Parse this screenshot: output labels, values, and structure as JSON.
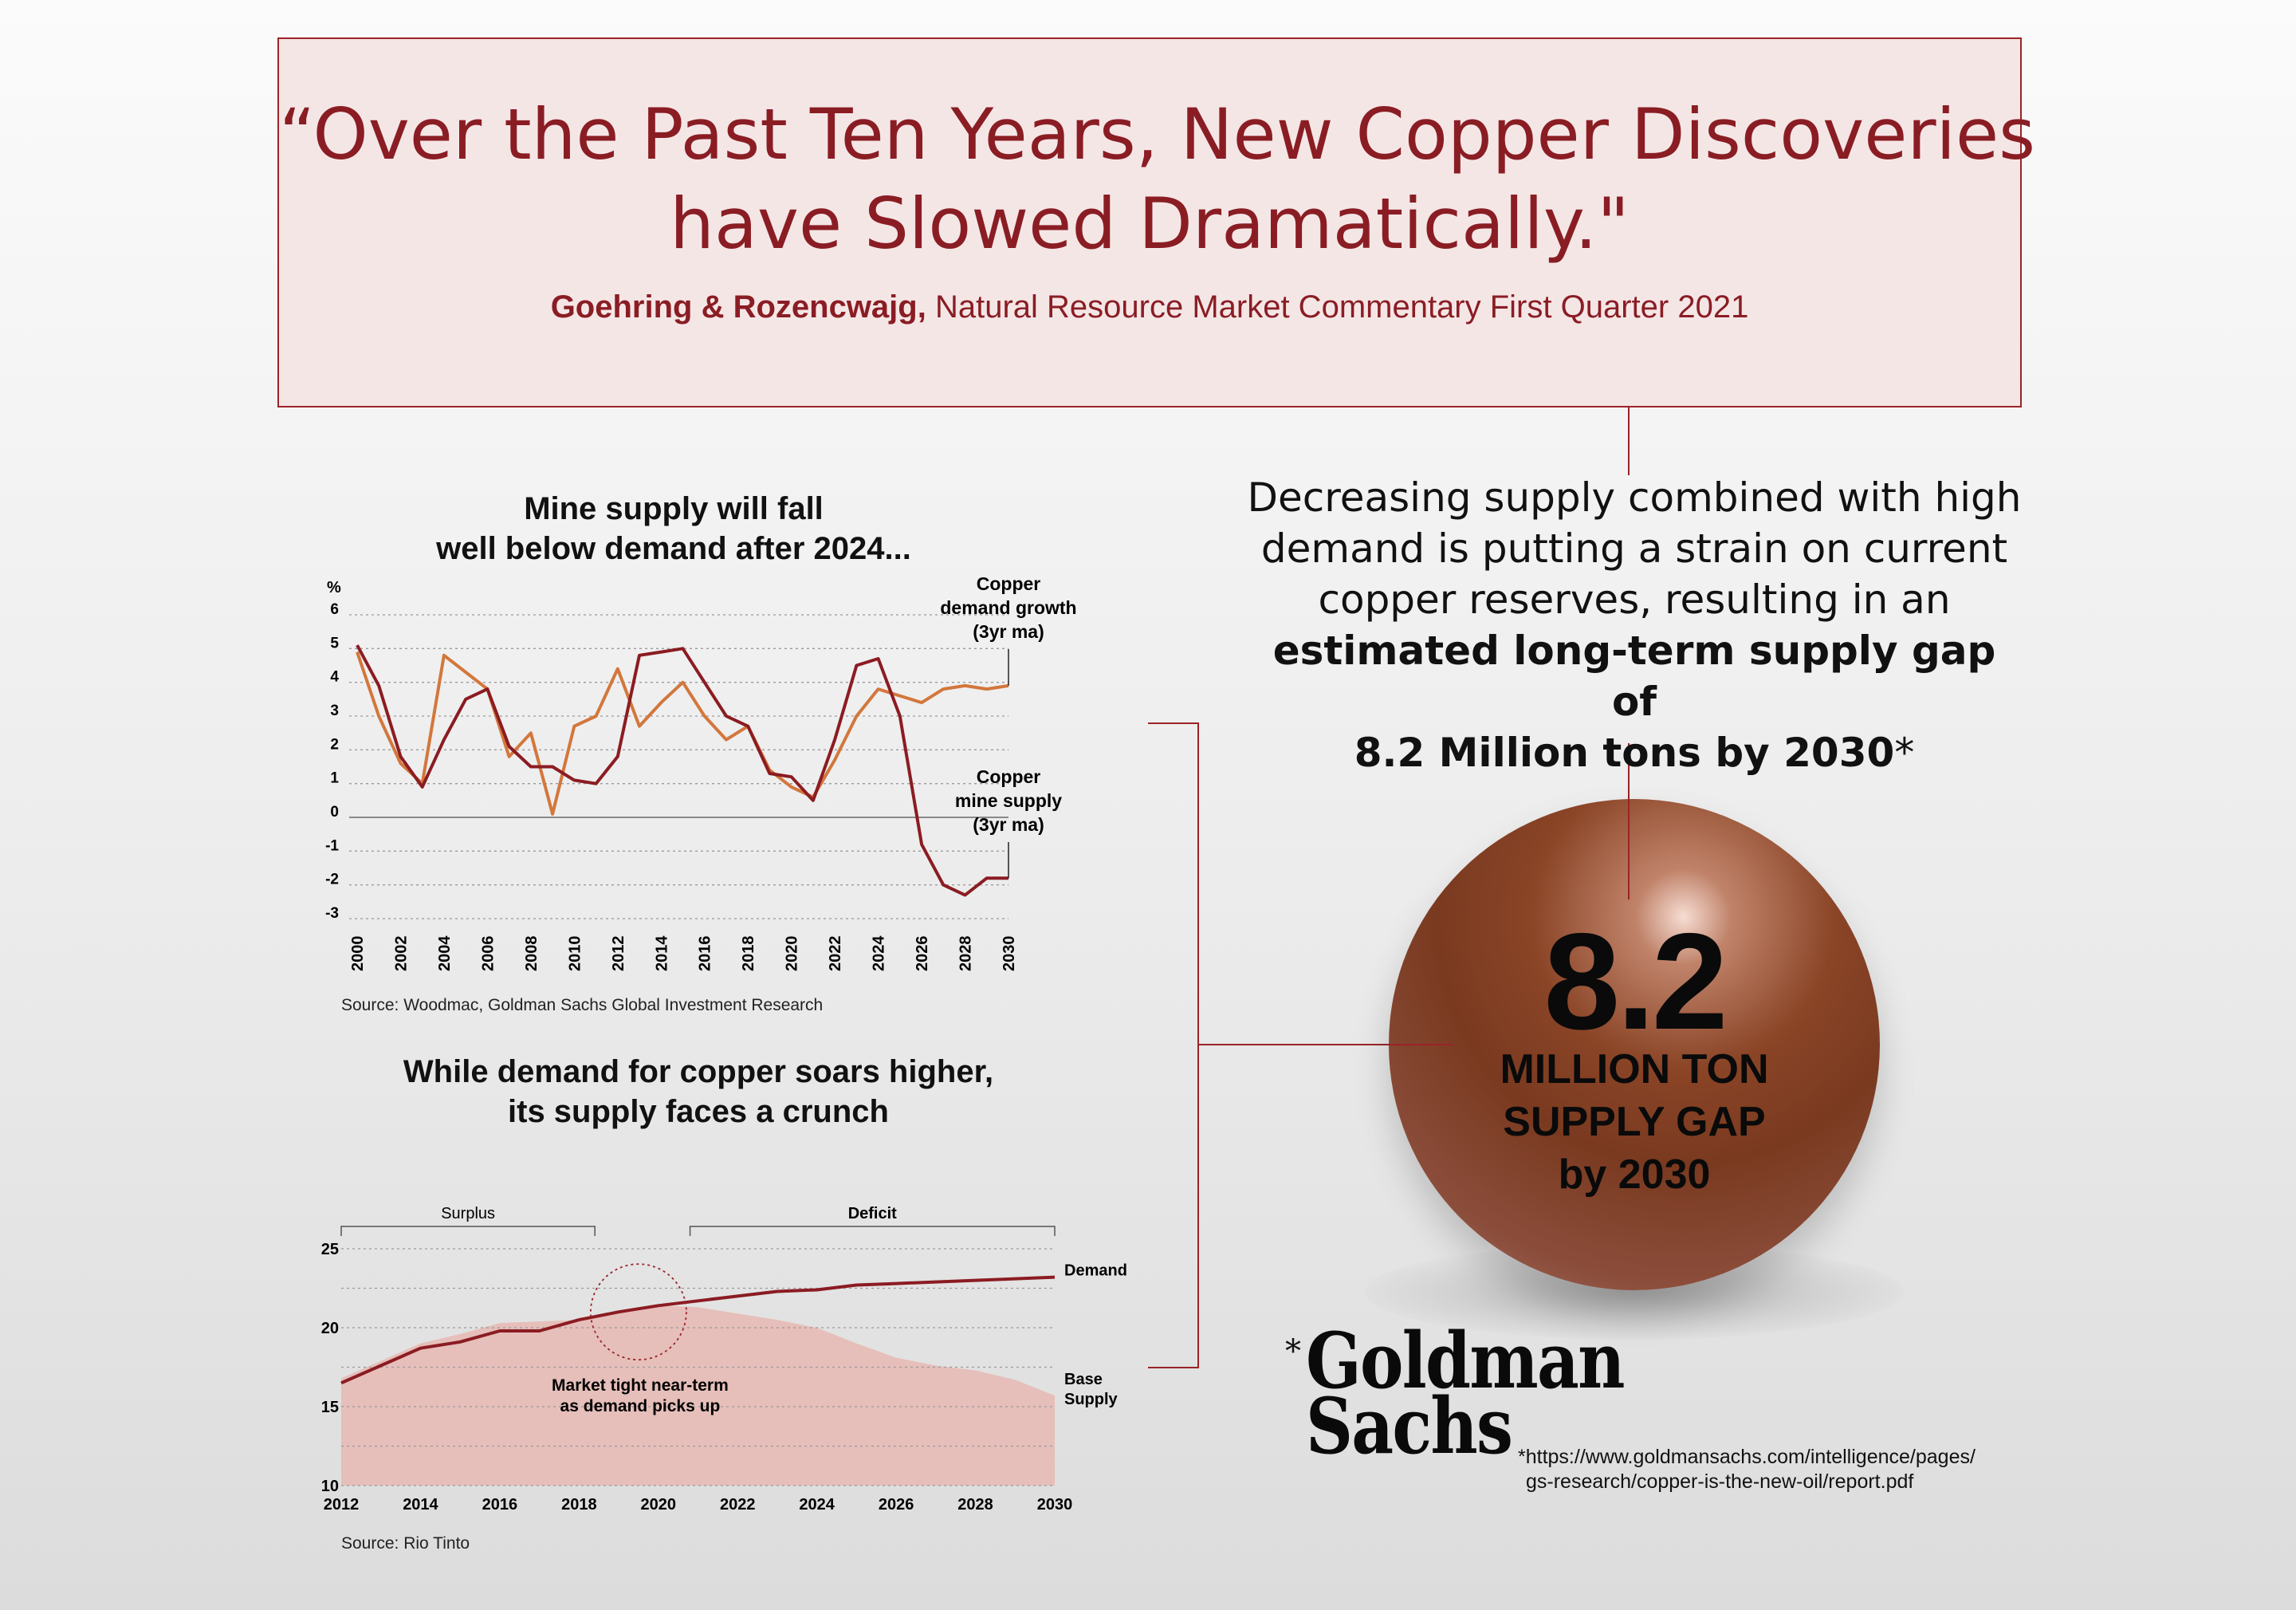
{
  "quote": {
    "line1": "“Over the Past Ten Years, New Copper Discoveries",
    "line2": "have Slowed Dramatically.\"",
    "author": "Goehring & Rozencwajg,",
    "publication": " Natural Resource Market Commentary First Quarter 2021"
  },
  "statement": {
    "line1": "Decreasing supply combined with high",
    "line2": "demand is putting a strain on current",
    "line3": "copper reserves, resulting in an",
    "bold1": "estimated long-term supply gap of",
    "bold2": "8.2 Million tons by 2030",
    "asterisk": "*"
  },
  "gap": {
    "value": "8.2",
    "line1": "MILLION TON",
    "line2": "SUPPLY GAP",
    "line3": "by 2030"
  },
  "goldman": {
    "asterisk": "*",
    "logo_line1": "Goldman",
    "logo_line2": "Sachs",
    "url_line1": "*https://www.goldmansachs.com/intelligence/pages/",
    "url_line2": "gs-research/copper-is-the-new-oil/report.pdf"
  },
  "colors": {
    "accent": "#9b2328",
    "demand_growth": "#d3773c",
    "mine_supply": "#8b1c22",
    "base_supply_fill": "#e6bfba",
    "quote_bg": "#f5e6e6"
  },
  "chart_data": [
    {
      "type": "line",
      "title_line1": "Mine supply will fall",
      "title_line2": "well below demand after 2024...",
      "ylabel": "%",
      "ylim": [
        -3,
        6
      ],
      "yticks": [
        "6",
        "5",
        "4",
        "3",
        "2",
        "1",
        "0",
        "-1",
        "-2",
        "-3"
      ],
      "xticks": [
        "2000",
        "2002",
        "2004",
        "2006",
        "2008",
        "2010",
        "2012",
        "2014",
        "2016",
        "2018",
        "2020",
        "2022",
        "2024",
        "2026",
        "2028",
        "2030"
      ],
      "x": [
        2000,
        2001,
        2002,
        2003,
        2004,
        2005,
        2006,
        2007,
        2008,
        2009,
        2010,
        2011,
        2012,
        2013,
        2014,
        2015,
        2016,
        2017,
        2018,
        2019,
        2020,
        2021,
        2022,
        2023,
        2024,
        2025,
        2026,
        2027,
        2028,
        2029,
        2030
      ],
      "series": [
        {
          "name_line1": "Copper",
          "name_line2": "demand growth",
          "name_line3": "(3yr ma)",
          "color": "#d3773c",
          "values": [
            4.9,
            3.0,
            1.6,
            1.0,
            4.8,
            4.3,
            3.8,
            1.8,
            2.5,
            0.1,
            2.7,
            3.0,
            4.4,
            2.7,
            3.4,
            4.0,
            3.0,
            2.3,
            2.7,
            1.4,
            0.9,
            0.6,
            1.7,
            3.0,
            3.8,
            3.6,
            3.4,
            3.8,
            3.9,
            3.8,
            3.9
          ]
        },
        {
          "name_line1": "Copper",
          "name_line2": "mine supply",
          "name_line3": "(3yr ma)",
          "color": "#8b1c22",
          "values": [
            5.1,
            3.9,
            1.8,
            0.9,
            2.3,
            3.5,
            3.8,
            2.1,
            1.5,
            1.5,
            1.1,
            1.0,
            1.8,
            4.8,
            4.9,
            5.0,
            4.0,
            3.0,
            2.7,
            1.3,
            1.2,
            0.5,
            2.3,
            4.5,
            4.7,
            3.0,
            -0.8,
            -2.0,
            -2.3,
            -1.8,
            -1.8
          ]
        }
      ],
      "source": "Source: Woodmac, Goldman Sachs Global Investment Research"
    },
    {
      "type": "area",
      "title_line1": "While demand for copper soars higher,",
      "title_line2": "its supply faces a crunch",
      "ylim": [
        10,
        25
      ],
      "yticks": [
        "25",
        "20",
        "15",
        "10"
      ],
      "xticks": [
        "2012",
        "2014",
        "2016",
        "2018",
        "2020",
        "2022",
        "2024",
        "2026",
        "2028",
        "2030"
      ],
      "x": [
        2012,
        2013,
        2014,
        2015,
        2016,
        2017,
        2018,
        2019,
        2020,
        2021,
        2022,
        2023,
        2024,
        2025,
        2026,
        2027,
        2028,
        2029,
        2030
      ],
      "series": [
        {
          "name": "Demand",
          "type": "line",
          "color": "#8b1c22",
          "values": [
            16.5,
            17.6,
            18.7,
            19.1,
            19.8,
            19.8,
            20.5,
            21.0,
            21.4,
            21.7,
            22.0,
            22.3,
            22.4,
            22.7,
            22.8,
            22.9,
            23.0,
            23.1,
            23.2
          ]
        },
        {
          "name_line1": "Base",
          "name_line2": "Supply",
          "type": "area",
          "color": "#e6bfba",
          "values": [
            16.8,
            17.9,
            19.0,
            19.6,
            20.3,
            20.4,
            20.5,
            21.0,
            21.4,
            21.3,
            20.9,
            20.5,
            20.0,
            19.0,
            18.1,
            17.6,
            17.3,
            16.7,
            15.7
          ]
        }
      ],
      "surplus_label": "Surplus",
      "surplus_range": [
        2012,
        2018.4
      ],
      "deficit_label": "Deficit",
      "deficit_range": [
        2020.8,
        2030
      ],
      "annotation_line1": "Market tight near-term",
      "annotation_line2": "as demand picks up",
      "annotation_at": [
        2019.5,
        21.0
      ],
      "source": "Source: Rio Tinto"
    }
  ]
}
